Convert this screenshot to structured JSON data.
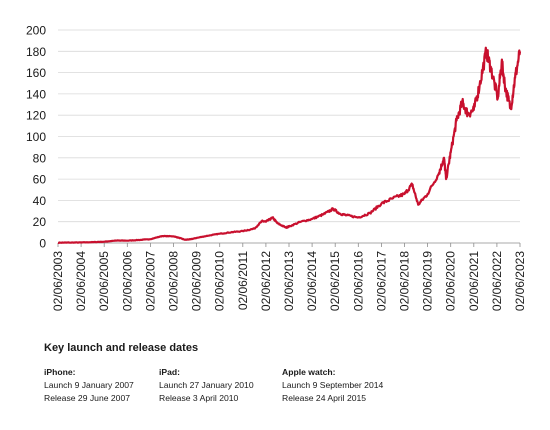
{
  "chart_data": {
    "type": "line",
    "title": "",
    "xlabel": "",
    "ylabel": "",
    "ylim": [
      0,
      200
    ],
    "yticks": [
      0,
      20,
      40,
      60,
      80,
      100,
      120,
      140,
      160,
      180,
      200
    ],
    "xticks": [
      "02/06/2003",
      "02/06/2004",
      "02/06/2005",
      "02/06/2006",
      "02/06/2007",
      "02/06/2008",
      "02/06/2009",
      "02/06/2010",
      "02/06/2011",
      "02/06/2012",
      "02/06/2013",
      "02/06/2014",
      "02/06/2015",
      "02/06/2016",
      "02/06/2017",
      "02/06/2018",
      "02/06/2019",
      "02/06/2020",
      "02/06/2021",
      "02/06/2022",
      "02/06/2023"
    ],
    "grid": true,
    "line_color": "#c8102e",
    "series": [
      {
        "x": [
          "2003-06-02",
          "2003-12-01",
          "2004-06-01",
          "2004-12-01",
          "2005-06-01",
          "2005-12-01",
          "2006-06-01",
          "2006-12-01",
          "2007-06-01",
          "2007-12-01",
          "2008-06-01",
          "2008-09-01",
          "2008-12-01",
          "2009-03-01",
          "2009-06-01",
          "2009-12-01",
          "2010-06-01",
          "2010-12-01",
          "2011-06-01",
          "2011-12-01",
          "2012-04-01",
          "2012-06-01",
          "2012-09-15",
          "2012-12-01",
          "2013-04-15",
          "2013-06-01",
          "2013-12-01",
          "2014-06-01",
          "2014-12-01",
          "2015-05-01",
          "2015-08-15",
          "2015-12-01",
          "2016-06-01",
          "2016-12-01",
          "2017-06-01",
          "2017-12-01",
          "2018-06-01",
          "2018-10-01",
          "2019-01-03",
          "2019-06-01",
          "2019-12-01",
          "2020-02-15",
          "2020-03-20",
          "2020-06-01",
          "2020-09-01",
          "2020-12-01",
          "2021-03-01",
          "2021-06-01",
          "2021-09-01",
          "2021-12-15",
          "2022-03-01",
          "2022-06-15",
          "2022-08-15",
          "2022-10-15",
          "2023-01-05",
          "2023-03-15",
          "2023-06-01"
        ],
        "y": [
          0.3,
          0.4,
          0.5,
          0.8,
          1.2,
          2.3,
          2.2,
          2.8,
          3.6,
          6.5,
          6.3,
          4.8,
          3.0,
          3.5,
          4.8,
          6.9,
          8.7,
          10.1,
          11.2,
          13.5,
          20.5,
          20.0,
          23.8,
          18.5,
          14.5,
          15.5,
          19.9,
          22.5,
          27.0,
          32.0,
          27.5,
          26.0,
          24.0,
          28.0,
          37.0,
          42.0,
          46.0,
          55.0,
          36.0,
          46.0,
          66.0,
          80.0,
          60.0,
          85.0,
          115.0,
          132.0,
          121.0,
          125.0,
          148.0,
          180.0,
          163.0,
          136.0,
          170.0,
          145.0,
          126.0,
          155.0,
          180.0
        ]
      }
    ]
  },
  "notes": {
    "title": "Key launch and release dates",
    "items": [
      {
        "name": "iPhone:",
        "launch": "Launch 9 January 2007",
        "release": "Release 29 June 2007"
      },
      {
        "name": "iPad:",
        "launch": "Launch 27 January 2010",
        "release": "Release 3 April 2010"
      },
      {
        "name": "Apple watch:",
        "launch": "Launch 9 September 2014",
        "release": "Release 24 April 2015"
      }
    ]
  }
}
